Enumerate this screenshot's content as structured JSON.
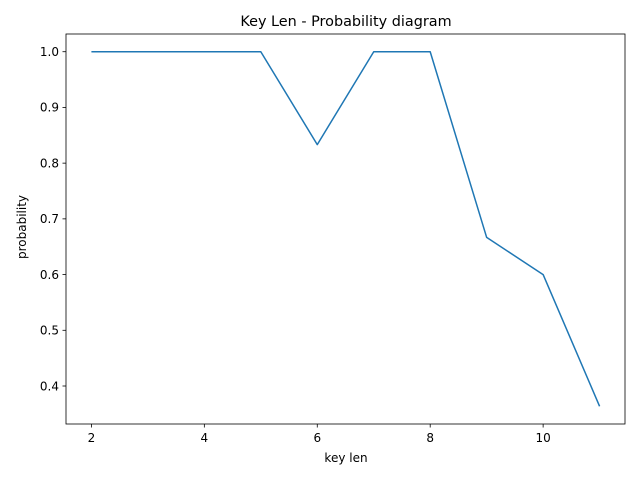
{
  "chart_data": {
    "type": "line",
    "title": "Key Len - Probability diagram",
    "xlabel": "key len",
    "ylabel": "probability",
    "x": [
      2,
      3,
      4,
      5,
      6,
      7,
      8,
      9,
      10,
      11
    ],
    "series": [
      {
        "values": [
          1.0,
          1.0,
          1.0,
          1.0,
          0.8333,
          1.0,
          1.0,
          0.6667,
          0.6,
          0.3636
        ]
      }
    ],
    "xlim": [
      1.55,
      11.45
    ],
    "ylim": [
      0.3318,
      1.0318
    ],
    "xticks": [
      2,
      4,
      6,
      8,
      10
    ],
    "xtick_labels": [
      "2",
      "4",
      "6",
      "8",
      "10"
    ],
    "yticks": [
      0.4,
      0.5,
      0.6,
      0.7,
      0.8,
      0.9,
      1.0
    ],
    "ytick_labels": [
      "0.4",
      "0.5",
      "0.6",
      "0.7",
      "0.8",
      "0.9",
      "1.0"
    ],
    "grid": false,
    "line_color": "#1f77b4"
  }
}
